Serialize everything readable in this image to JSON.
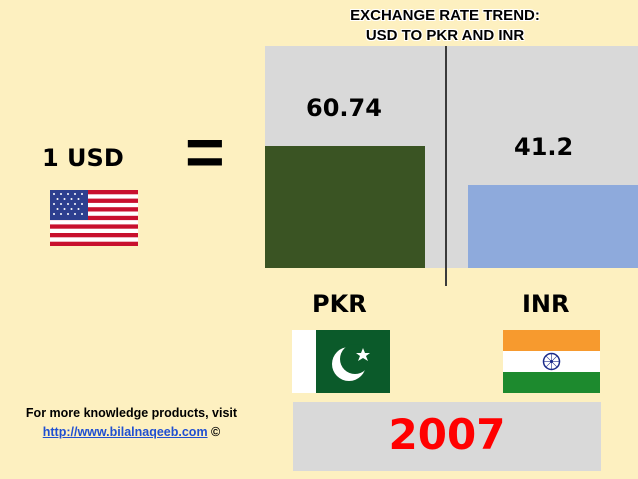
{
  "chart_data": {
    "type": "bar",
    "title": "EXCHANGE RATE TREND:\nUSD TO PKR AND INR",
    "title_lines": [
      "EXCHANGE RATE TREND:",
      "USD TO PKR AND INR"
    ],
    "categories": [
      "PKR",
      "INR"
    ],
    "values": [
      60.74,
      41.2
    ],
    "value_labels": [
      "60.74",
      "41.2"
    ],
    "colors": [
      "#3a5423",
      "#8eaadc"
    ],
    "base_label": "1 USD",
    "equals": "=",
    "year": "2007",
    "ylim": [
      0,
      70
    ],
    "grid": false
  },
  "footer": {
    "line1": "For more knowledge products, visit",
    "link": "http://www.bilalnaqeeb.com",
    "copyright": "©"
  },
  "icons": [
    "usa-flag-icon",
    "pakistan-flag-icon",
    "india-flag-icon"
  ]
}
